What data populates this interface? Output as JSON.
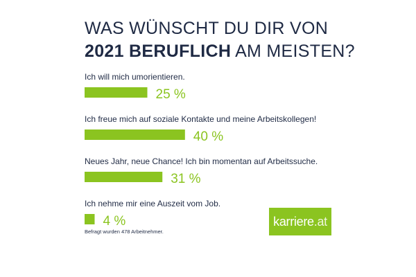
{
  "title_line1": "WAS WÜNSCHT DU DIR VON",
  "title_line2_bold": "2021 BERUFLICH",
  "title_line2_rest": "AM MEISTEN?",
  "footnote": "Befragt wurden 478 Arbeitnehmer.",
  "logo": {
    "name": "karriere",
    "tld": ".at"
  },
  "colors": {
    "bar": "#8bc420",
    "text": "#1f2a44",
    "value": "#8bc420"
  },
  "chart_data": {
    "type": "bar",
    "orientation": "horizontal",
    "title": "WAS WÜNSCHT DU DIR VON 2021 BERUFLICH AM MEISTEN?",
    "categories": [
      "Ich will mich umorientieren.",
      "Ich freue mich auf soziale Kontakte und meine Arbeitskollegen!",
      "Neues Jahr, neue Chance! Ich bin momentan auf Arbeitssuche.",
      "Ich nehme mir eine Auszeit vom Job."
    ],
    "values": [
      25,
      40,
      31,
      4
    ],
    "value_labels": [
      "25 %",
      "40 %",
      "31 %",
      "4 %"
    ],
    "unit": "%",
    "xlim": [
      0,
      100
    ]
  }
}
